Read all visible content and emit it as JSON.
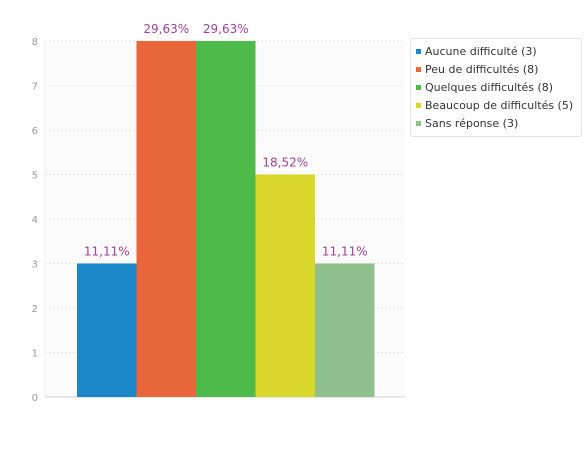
{
  "chart_data": {
    "type": "bar",
    "categories": [
      "Aucune difficulté (3)",
      "Peu de difficultés (8)",
      "Quelques difficultés (8)",
      "Beaucoup de difficultés (5)",
      "Sans réponse (3)"
    ],
    "values": [
      3,
      8,
      8,
      5,
      3
    ],
    "data_labels": [
      "11,11%",
      "29,63%",
      "29,63%",
      "18,52%",
      "11,11%"
    ],
    "colors": [
      "#1a87c9",
      "#e8663a",
      "#4dba4a",
      "#d9d72c",
      "#8fbf8a"
    ],
    "yticks": [
      "0",
      "1",
      "2",
      "3",
      "4",
      "5",
      "6",
      "7",
      "8"
    ],
    "ylim": [
      0,
      8
    ],
    "title": "",
    "xlabel": "",
    "ylabel": "",
    "grid": true,
    "legend_position": "top-right",
    "label_color": "#a0439a"
  }
}
